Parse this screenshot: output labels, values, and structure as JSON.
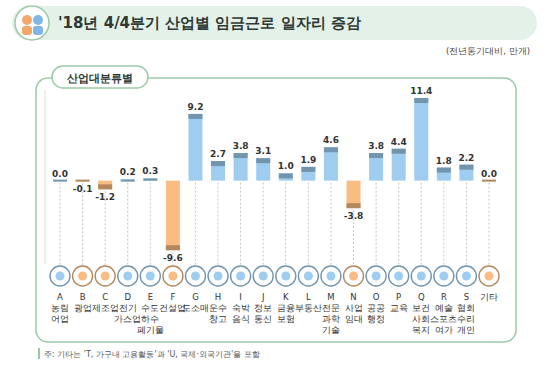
{
  "chart_data": {
    "type": "bar",
    "title": "'18년 4/4분기 산업별 임금근로 일자리 증감",
    "subtitle": "(전년동기대비, 만개)",
    "annotations": [
      "산업대분류별",
      "주: 기타는 'T, 가구내 고용활동'과 'U, 국제·외국기관'을 포함"
    ],
    "codes": [
      "A",
      "B",
      "C",
      "D",
      "E",
      "F",
      "G",
      "H",
      "I",
      "J",
      "K",
      "L",
      "M",
      "N",
      "O",
      "P",
      "Q",
      "R",
      "S",
      null
    ],
    "categories": [
      "농림\n어업",
      "광업",
      "제조업",
      "전기\n가스업",
      "수도\n하수\n폐기물",
      "건설업",
      "도소매",
      "운수\n창고",
      "숙박\n음식",
      "정보\n통신",
      "금융\n보험",
      "부동산",
      "전문\n과학\n기술",
      "사업\n임대",
      "공공\n행정",
      "교육",
      "보건\n사회\n복지",
      "예술\n스포츠\n여가",
      "협회\n수리\n개인",
      "기타"
    ],
    "values": [
      0.0,
      -0.1,
      -1.2,
      0.2,
      0.3,
      -9.6,
      9.2,
      2.7,
      3.8,
      3.1,
      1.0,
      1.9,
      4.6,
      -3.8,
      3.8,
      4.4,
      11.4,
      1.8,
      2.2,
      0.0
    ],
    "value_labels": [
      "0.0",
      "-0.1",
      "-1.2",
      "0.2",
      "0.3",
      "-9.6",
      "9.2",
      "2.7",
      "3.8",
      "3.1",
      "1.0",
      "1.9",
      "4.6",
      "-3.8",
      "3.8",
      "4.4",
      "11.4",
      "1.8",
      "2.2",
      "0.0"
    ],
    "colors": [
      "#9fcdf0",
      "#f9bd84",
      "#f9bd84",
      "#9fcdf0",
      "#9fcdf0",
      "#f9bd84",
      "#9fcdf0",
      "#9fcdf0",
      "#9fcdf0",
      "#9fcdf0",
      "#9fcdf0",
      "#9fcdf0",
      "#9fcdf0",
      "#f9bd84",
      "#9fcdf0",
      "#9fcdf0",
      "#9fcdf0",
      "#9fcdf0",
      "#9fcdf0",
      "#f9bd84"
    ],
    "ylim": [
      -11.5,
      12.5
    ],
    "tick_labels": false,
    "data_labels": true,
    "grid": false
  }
}
